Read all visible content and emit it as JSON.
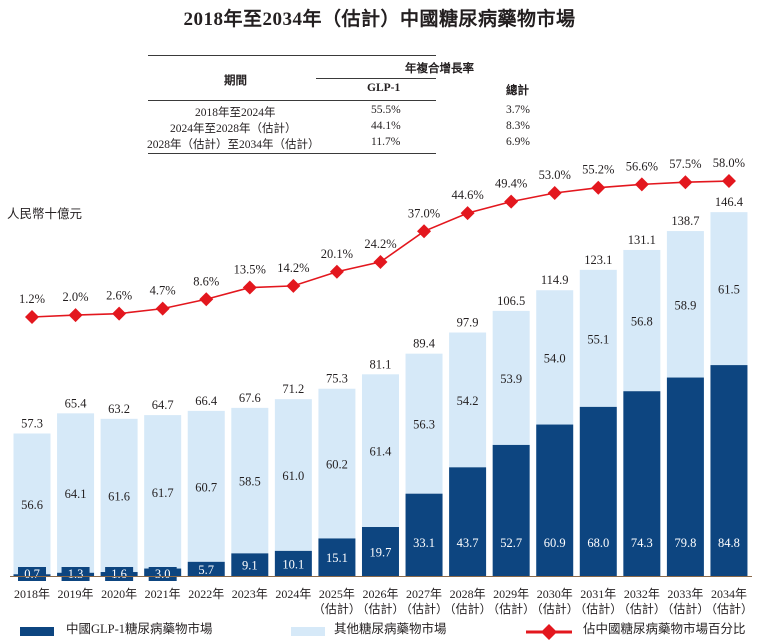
{
  "title": "2018年至2034年（估計）中國糖尿病藥物市場",
  "cagr_table": {
    "period_header": "期間",
    "group_header": "年複合增長率",
    "col_headers": [
      "GLP-1",
      "總計"
    ],
    "rows": [
      {
        "period": "2018年至2024年",
        "glp1": "55.5%",
        "total": "3.7%"
      },
      {
        "period": "2024年至2028年（估計）",
        "glp1": "44.1%",
        "total": "8.3%"
      },
      {
        "period": "2028年（估計）至2034年（估計）",
        "glp1": "11.7%",
        "total": "6.9%"
      }
    ]
  },
  "chart_data": {
    "type": "bar",
    "stacked": true,
    "title": "2018年至2034年（估計）中國糖尿病藥物市場",
    "ylabel": "人民幣十億元",
    "xlabel": "",
    "ylim": [
      0,
      146.4
    ],
    "grid": false,
    "legend_position": "bottom",
    "categories": [
      {
        "year": "2018年",
        "note": ""
      },
      {
        "year": "2019年",
        "note": ""
      },
      {
        "year": "2020年",
        "note": ""
      },
      {
        "year": "2021年",
        "note": ""
      },
      {
        "year": "2022年",
        "note": ""
      },
      {
        "year": "2023年",
        "note": ""
      },
      {
        "year": "2024年",
        "note": ""
      },
      {
        "year": "2025年",
        "note": "（估計）"
      },
      {
        "year": "2026年",
        "note": "（估計）"
      },
      {
        "year": "2027年",
        "note": "（估計）"
      },
      {
        "year": "2028年",
        "note": "（估計）"
      },
      {
        "year": "2029年",
        "note": "（估計）"
      },
      {
        "year": "2030年",
        "note": "（估計）"
      },
      {
        "year": "2031年",
        "note": "（估計）"
      },
      {
        "year": "2032年",
        "note": "（估計）"
      },
      {
        "year": "2033年",
        "note": "（估計）"
      },
      {
        "year": "2034年",
        "note": "（估計）"
      }
    ],
    "series": [
      {
        "name": "中國GLP-1糖尿病藥物市場",
        "color": "#0d4580",
        "values": [
          0.7,
          1.3,
          1.6,
          3.0,
          5.7,
          9.1,
          10.1,
          15.1,
          19.7,
          33.1,
          43.7,
          52.7,
          60.9,
          68.0,
          74.3,
          79.8,
          84.8
        ]
      },
      {
        "name": "其他糖尿病藥物市場",
        "color": "#d6e9f8",
        "values": [
          56.6,
          64.1,
          61.6,
          61.7,
          60.7,
          58.5,
          61.0,
          60.2,
          61.4,
          56.3,
          54.2,
          53.9,
          54.0,
          55.1,
          56.8,
          58.9,
          61.5
        ]
      }
    ],
    "totals": [
      57.3,
      65.4,
      63.2,
      64.7,
      66.4,
      67.6,
      71.2,
      75.3,
      81.1,
      89.4,
      97.9,
      106.5,
      114.9,
      123.1,
      131.1,
      138.7,
      146.4
    ],
    "line_series": {
      "name": "佔中國糖尿病藥物市場百分比",
      "color": "#e3171e",
      "unit": "%",
      "values": [
        1.2,
        2.0,
        2.6,
        4.7,
        8.6,
        13.5,
        14.2,
        20.1,
        24.2,
        37.0,
        44.6,
        49.4,
        53.0,
        55.2,
        56.6,
        57.5,
        58.0
      ]
    }
  },
  "legend": {
    "glp1": "中國GLP-1糖尿病藥物市場",
    "other": "其他糖尿病藥物市場",
    "share": "佔中國糖尿病藥物市場百分比"
  }
}
